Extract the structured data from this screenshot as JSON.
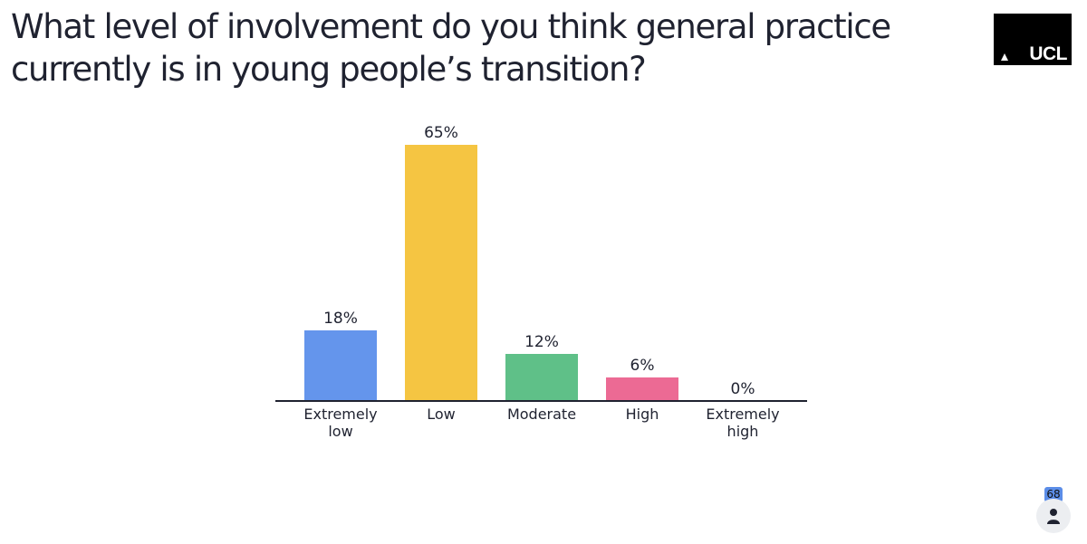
{
  "slide": {
    "title": "What level of involvement do you think general practice currently is in young people’s transition?"
  },
  "logo": {
    "text": "UCL"
  },
  "participants": {
    "count": "68"
  },
  "chart_data": {
    "type": "bar",
    "title": "",
    "xlabel": "",
    "ylabel": "",
    "ylim": [
      0,
      65
    ],
    "grid": false,
    "categories": [
      [
        "Extremely",
        "low"
      ],
      [
        "Low"
      ],
      [
        "Moderate"
      ],
      [
        "High"
      ],
      [
        "Extremely",
        "high"
      ]
    ],
    "values": [
      18,
      65,
      12,
      6,
      0
    ],
    "value_labels": [
      "18%",
      "65%",
      "12%",
      "6%",
      "0%"
    ],
    "colors": [
      "#6495ec",
      "#f5c542",
      "#5fc088",
      "#ec6a94",
      "#b0b0b0"
    ]
  }
}
